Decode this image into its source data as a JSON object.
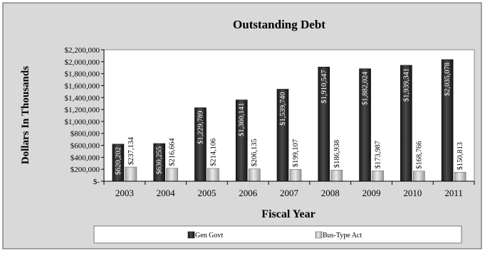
{
  "chart_data": {
    "type": "bar",
    "title": "Outstanding Debt",
    "xlabel": "Fiscal Year",
    "ylabel": "Dollars In Thousands",
    "categories": [
      "2003",
      "2004",
      "2005",
      "2006",
      "2007",
      "2008",
      "2009",
      "2010",
      "2011"
    ],
    "series": [
      {
        "name": "Gen Govt",
        "values": [
          620202,
          630255,
          1229789,
          1360141,
          1539740,
          1910547,
          1882024,
          1939341,
          2035078
        ],
        "labels": [
          "$620,202",
          "$630,255",
          "$1,229,789",
          "$1,360,141",
          "$1,539,740",
          "$1,910,547",
          "$1,882,024",
          "$1,939,341",
          "$2,035,078"
        ],
        "color": "#2a2a2a"
      },
      {
        "name": "Bus-Type Act",
        "values": [
          237134,
          216664,
          214106,
          206135,
          199107,
          186938,
          173987,
          168766,
          150813
        ],
        "labels": [
          "$237,134",
          "$216,664",
          "$214,106",
          "$206,135",
          "$199,107",
          "$186,938",
          "$173,987",
          "$168,766",
          "$150,813"
        ],
        "color": "#c8c8c8"
      }
    ],
    "yticks": [
      0,
      200000,
      400000,
      600000,
      800000,
      1000000,
      1200000,
      1400000,
      1600000,
      1800000,
      2000000,
      2200000
    ],
    "ytick_labels": [
      "$-",
      "$200,000",
      "$400,000",
      "$600,000",
      "$800,000",
      "$1,000,000",
      "$1,200,000",
      "$1,400,000",
      "$1,600,000",
      "$1,800,000",
      "$2,000,000",
      "$2,200,000"
    ],
    "ylim": [
      0,
      2200000
    ],
    "legend_position": "bottom",
    "grid": false
  }
}
